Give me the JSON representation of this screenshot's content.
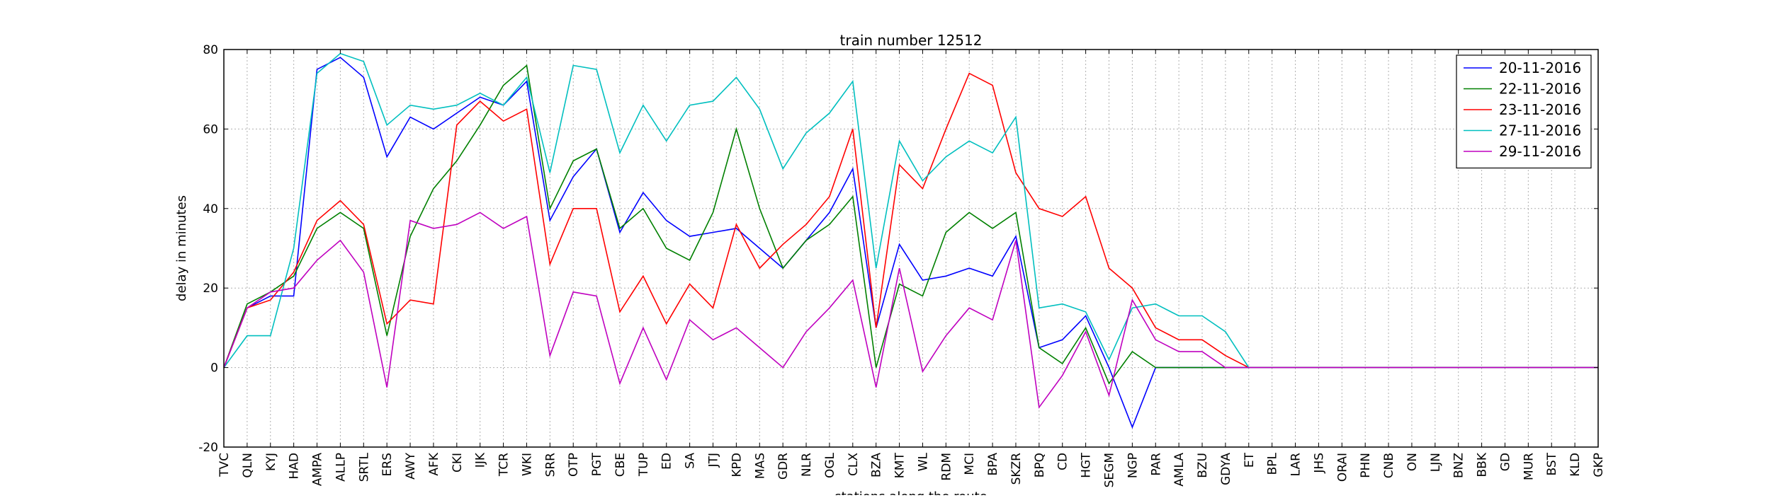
{
  "chart_data": {
    "type": "line",
    "title": "train number 12512",
    "xlabel": "stations along the route",
    "ylabel": "delay in minutes",
    "ylim": [
      -20,
      80
    ],
    "yticks": [
      -20,
      0,
      20,
      40,
      60,
      80
    ],
    "grid": true,
    "legend_position": "top-right",
    "categories": [
      "TVC",
      "QLN",
      "KYJ",
      "HAD",
      "AMPA",
      "ALLP",
      "SRTL",
      "ERS",
      "AWY",
      "AFK",
      "CKI",
      "IJK",
      "TCR",
      "WKI",
      "SRR",
      "OTP",
      "PGT",
      "CBE",
      "TUP",
      "ED",
      "SA",
      "JTJ",
      "KPD",
      "MAS",
      "GDR",
      "NLR",
      "OGL",
      "CLX",
      "BZA",
      "KMT",
      "WL",
      "RDM",
      "MCI",
      "BPA",
      "SKZR",
      "BPQ",
      "CD",
      "HGT",
      "SEGM",
      "NGP",
      "PAR",
      "AMLA",
      "BZU",
      "GDYA",
      "ET",
      "BPL",
      "LAR",
      "JHS",
      "ORAI",
      "PHN",
      "CNB",
      "ON",
      "LJN",
      "BNZ",
      "BBK",
      "GD",
      "MUR",
      "BST",
      "KLD",
      "GKP"
    ],
    "series": [
      {
        "name": "20-11-2016",
        "color": "#0000ff",
        "values": [
          0,
          15,
          18,
          18,
          75,
          78,
          73,
          53,
          63,
          60,
          64,
          68,
          66,
          72,
          37,
          48,
          55,
          34,
          44,
          37,
          33,
          34,
          35,
          30,
          25,
          32,
          39,
          50,
          10,
          31,
          22,
          23,
          25,
          23,
          33,
          5,
          7,
          13,
          0,
          -15,
          0,
          0,
          0,
          0,
          0,
          0,
          0,
          0,
          0,
          0,
          0,
          0,
          0,
          0,
          0,
          0,
          0,
          0,
          0,
          0
        ]
      },
      {
        "name": "22-11-2016",
        "color": "#008000",
        "values": [
          0,
          16,
          19,
          23,
          35,
          39,
          35,
          8,
          33,
          45,
          52,
          61,
          71,
          76,
          40,
          52,
          55,
          35,
          40,
          30,
          27,
          39,
          60,
          40,
          25,
          32,
          36,
          43,
          0,
          21,
          18,
          34,
          39,
          35,
          39,
          5,
          1,
          10,
          -4,
          4,
          0,
          0,
          0,
          0,
          0,
          0,
          0,
          0,
          0,
          0,
          0,
          0,
          0,
          0,
          0,
          0,
          0,
          0,
          0,
          0
        ]
      },
      {
        "name": "23-11-2016",
        "color": "#ff0000",
        "values": [
          0,
          15,
          17,
          24,
          37,
          42,
          36,
          11,
          17,
          16,
          61,
          67,
          62,
          65,
          26,
          40,
          40,
          14,
          23,
          11,
          21,
          15,
          36,
          25,
          31,
          36,
          43,
          60,
          10,
          51,
          45,
          60,
          74,
          71,
          49,
          40,
          38,
          43,
          25,
          20,
          10,
          7,
          7,
          3,
          0,
          0,
          0,
          0,
          0,
          0,
          0,
          0,
          0,
          0,
          0,
          0,
          0,
          0,
          0,
          0
        ]
      },
      {
        "name": "27-11-2016",
        "color": "#00bfbf",
        "values": [
          0,
          8,
          8,
          30,
          74,
          79,
          77,
          61,
          66,
          65,
          66,
          69,
          66,
          73,
          49,
          76,
          75,
          54,
          66,
          57,
          66,
          67,
          73,
          65,
          50,
          59,
          64,
          72,
          25,
          57,
          47,
          53,
          57,
          54,
          63,
          15,
          16,
          14,
          2,
          15,
          16,
          13,
          13,
          9,
          0,
          0,
          0,
          0,
          0,
          0,
          0,
          0,
          0,
          0,
          0,
          0,
          0,
          0,
          0,
          0
        ]
      },
      {
        "name": "29-11-2016",
        "color": "#bf00bf",
        "values": [
          0,
          15,
          19,
          20,
          27,
          32,
          24,
          -5,
          37,
          35,
          36,
          39,
          35,
          38,
          3,
          19,
          18,
          -4,
          10,
          -3,
          12,
          7,
          10,
          5,
          0,
          9,
          15,
          22,
          -5,
          25,
          -1,
          8,
          15,
          12,
          32,
          -10,
          -2,
          9,
          -7,
          17,
          7,
          4,
          4,
          0,
          0,
          0,
          0,
          0,
          0,
          0,
          0,
          0,
          0,
          0,
          0,
          0,
          0,
          0,
          0,
          0
        ]
      }
    ]
  }
}
